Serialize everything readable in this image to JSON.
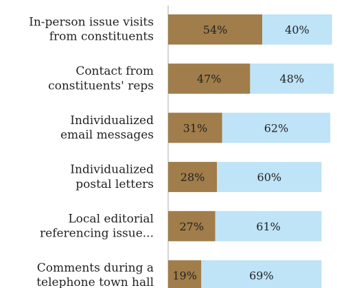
{
  "chart_data": {
    "type": "bar",
    "orientation": "horizontal",
    "stacked": true,
    "categories": [
      [
        "In-person issue visits",
        "from constituents"
      ],
      [
        "Contact from",
        "constituents' reps"
      ],
      [
        "Individualized",
        "email messages"
      ],
      [
        "Individualized",
        "postal letters"
      ],
      [
        "Local editorial",
        "referencing issue..."
      ],
      [
        "Comments during a",
        "telephone town hall"
      ]
    ],
    "series": [
      {
        "color": "#a07d4a",
        "values": [
          54,
          47,
          31,
          28,
          27,
          19
        ]
      },
      {
        "color": "#bfe3f7",
        "values": [
          40,
          48,
          62,
          60,
          61,
          69
        ]
      }
    ],
    "value_labels": [
      [
        "54%",
        "47%",
        "31%",
        "28%",
        "27%",
        "19%"
      ],
      [
        "40%",
        "48%",
        "62%",
        "60%",
        "61%",
        "69%"
      ]
    ],
    "xlim": [
      0,
      100
    ],
    "grid": false,
    "legend": "none",
    "axis_color": "#aaaaaa"
  }
}
